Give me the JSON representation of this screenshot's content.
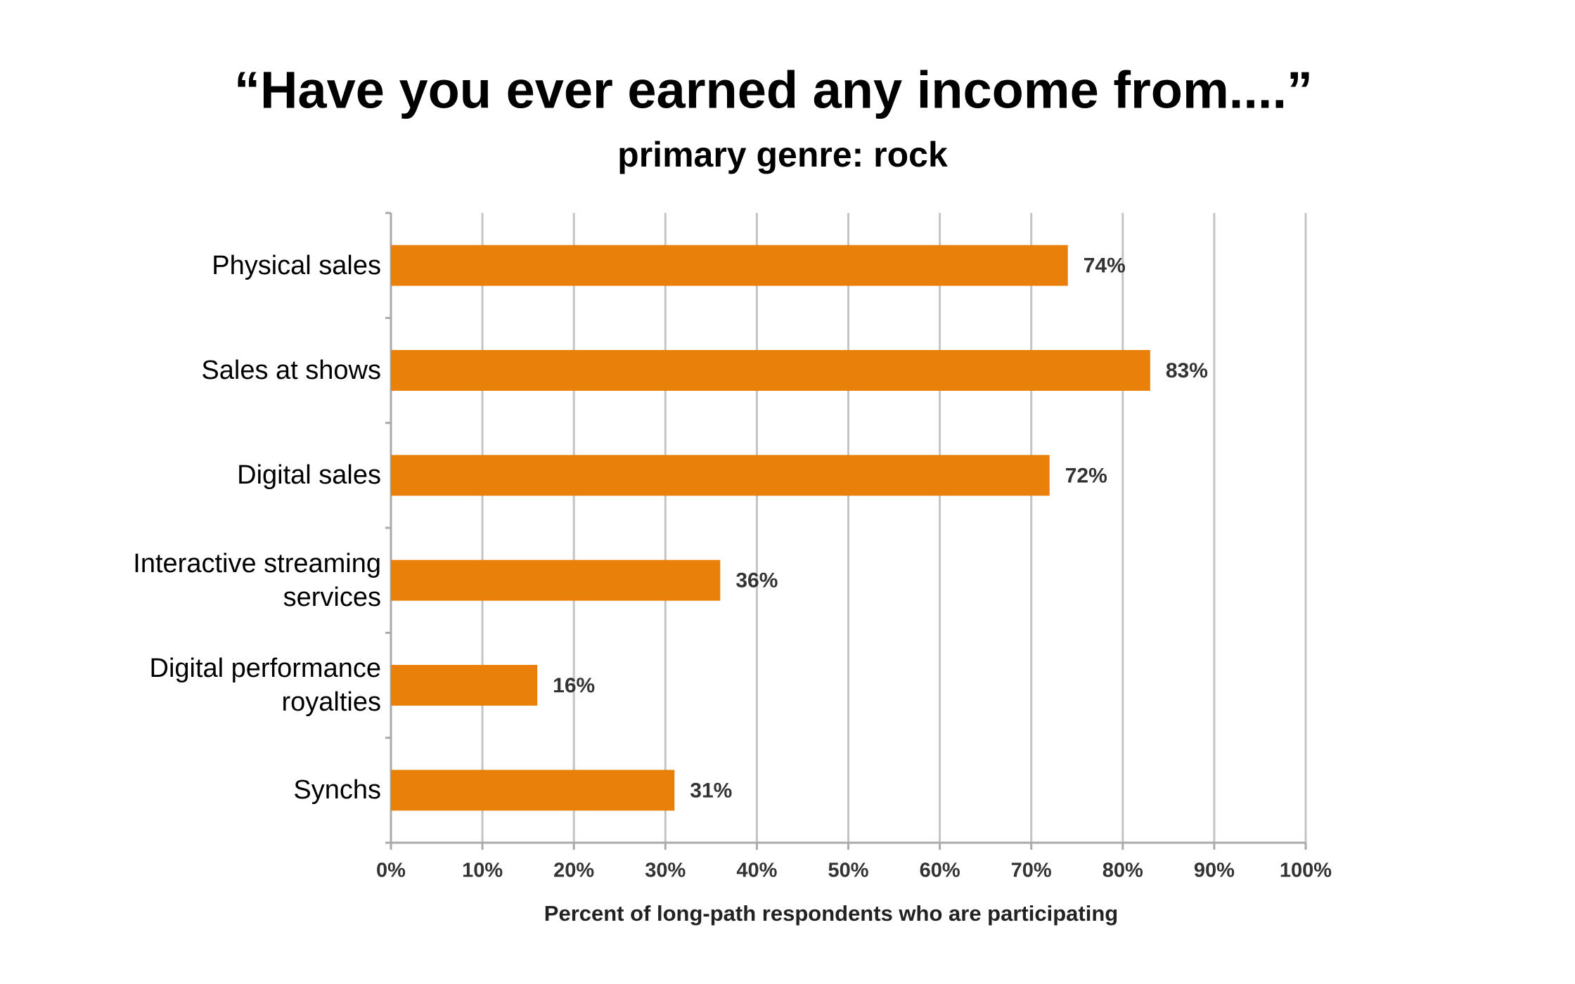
{
  "chart_data": {
    "type": "bar",
    "orientation": "horizontal",
    "title": "“Have you ever earned any income from....”",
    "subtitle": "primary genre: rock",
    "x_label": "Percent of long-path respondents who are participating",
    "categories": [
      "Physical sales",
      "Sales at shows",
      "Digital sales",
      "Interactive streaming services",
      "Digital performance royalties",
      "Synchs"
    ],
    "values": [
      74,
      83,
      72,
      36,
      16,
      31
    ],
    "value_labels": [
      "74%",
      "83%",
      "72%",
      "36%",
      "16%",
      "31%"
    ],
    "color": "#e8800a",
    "xlim": [
      0,
      100
    ],
    "xticks": [
      {
        "value": 0,
        "label": "0%"
      },
      {
        "value": 10,
        "label": "10%"
      },
      {
        "value": 20,
        "label": "20%"
      },
      {
        "value": 30,
        "label": "30%"
      },
      {
        "value": 40,
        "label": "40%"
      },
      {
        "value": 50,
        "label": "50%"
      },
      {
        "value": 60,
        "label": "60%"
      },
      {
        "value": 70,
        "label": "70%"
      },
      {
        "value": 80,
        "label": "80%"
      },
      {
        "value": 90,
        "label": "90%"
      },
      {
        "value": 100,
        "label": "100%"
      }
    ],
    "grid": true
  }
}
